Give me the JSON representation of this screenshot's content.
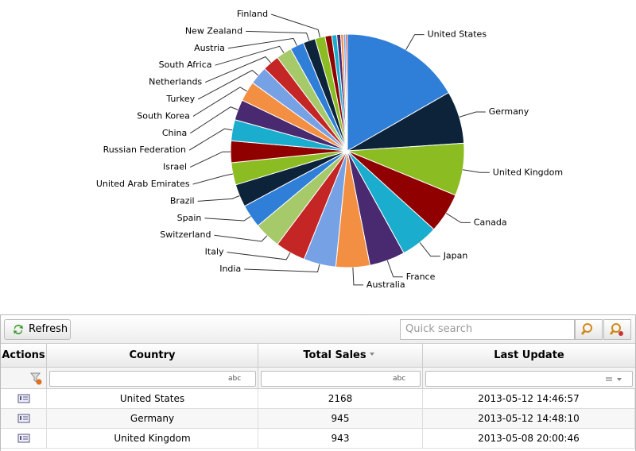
{
  "chart_data": {
    "type": "pie",
    "categories": [
      "United States",
      "Germany",
      "United Kingdom",
      "Canada",
      "Japan",
      "France",
      "Australia",
      "India",
      "Italy",
      "Switzerland",
      "Spain",
      "Brazil",
      "United Arab Emirates",
      "Israel",
      "Russian Federation",
      "China",
      "South Korea",
      "Turkey",
      "Netherlands",
      "South Africa",
      "Austria",
      "New Zealand",
      "Finland",
      null,
      null,
      null,
      null,
      null,
      null
    ],
    "values": [
      2168,
      945,
      943,
      720,
      680,
      640,
      610,
      580,
      540,
      480,
      420,
      410,
      400,
      390,
      380,
      370,
      360,
      330,
      300,
      280,
      250,
      220,
      180,
      120,
      90,
      70,
      50,
      40,
      30
    ],
    "colors": [
      "#2f7ed8",
      "#0d233a",
      "#8bbc21",
      "#910000",
      "#1aadce",
      "#492970",
      "#f28f43",
      "#77a1e5",
      "#c42525",
      "#a6c96a"
    ]
  },
  "toolbar": {
    "refresh": "Refresh",
    "search_placeholder": "Quick search"
  },
  "table": {
    "columns": [
      "Actions",
      "Country",
      "Total Sales",
      "Last Update"
    ],
    "filter_labels": [
      "abc",
      "abc"
    ],
    "rows": [
      [
        "United States",
        2168,
        "2013-05-12 14:46:57"
      ],
      [
        "Germany",
        945,
        "2013-05-12 14:48:10"
      ],
      [
        "United Kingdom",
        943,
        "2013-05-08 20:00:46"
      ]
    ]
  }
}
